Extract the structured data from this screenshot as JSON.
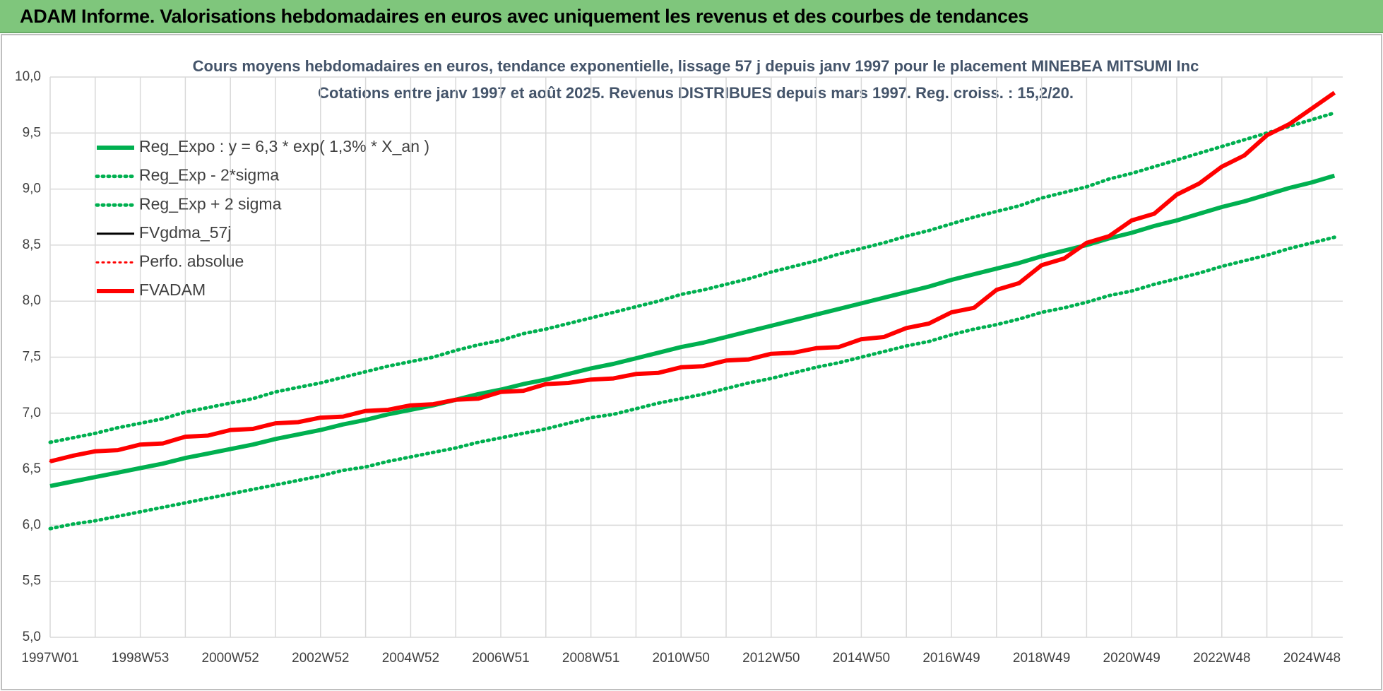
{
  "page_title": "ADAM Informe. Valorisations hebdomadaires en euros avec uniquement les revenus et des courbes de tendances",
  "chart_data": {
    "type": "line",
    "title": "Cours moyens  hebdomadaires en euros, tendance exponentielle, lissage 57 j depuis janv 1997 pour le placement MINEBEA MITSUMI Inc",
    "subtitle": "Cotations entre janv 1997 et août 2025.  Revenus DISTRIBUES depuis mars 1997. Reg. croiss. : 15,2/20.",
    "categories": [
      "1997W01",
      null,
      null,
      null,
      "1998W53",
      null,
      null,
      null,
      "2000W52",
      null,
      null,
      null,
      "2002W52",
      null,
      null,
      null,
      "2004W52",
      null,
      null,
      null,
      "2006W51",
      null,
      null,
      null,
      "2008W51",
      null,
      null,
      null,
      "2010W50",
      null,
      null,
      null,
      "2012W50",
      null,
      null,
      null,
      "2014W50",
      null,
      null,
      null,
      "2016W49",
      null,
      null,
      null,
      "2018W49",
      null,
      null,
      null,
      "2020W49",
      null,
      null,
      null,
      "2022W48",
      null,
      null,
      null,
      "2024W48",
      null
    ],
    "ylim": [
      5,
      10
    ],
    "yticks": [
      {
        "value": 5,
        "label": "5,0"
      },
      {
        "value": 5.5,
        "label": "5,5"
      },
      {
        "value": 6,
        "label": "6,0"
      },
      {
        "value": 6.5,
        "label": "6,5"
      },
      {
        "value": 7,
        "label": "7,0"
      },
      {
        "value": 7.5,
        "label": "7,5"
      },
      {
        "value": 8,
        "label": "8,0"
      },
      {
        "value": 8.5,
        "label": "8,5"
      },
      {
        "value": 9,
        "label": "9,0"
      },
      {
        "value": 9.5,
        "label": "9,5"
      },
      {
        "value": 10,
        "label": "10,0"
      }
    ],
    "grid": true,
    "legend": "top-left",
    "series": [
      {
        "name": "Reg_Expo : y = 6,3 * exp( 1,3% *  X_an )",
        "color": "#00b050",
        "style": "solid",
        "values": [
          6.35,
          6.39,
          6.43,
          6.47,
          6.51,
          6.55,
          6.6,
          6.64,
          6.68,
          6.72,
          6.77,
          6.81,
          6.85,
          6.9,
          6.94,
          6.99,
          7.03,
          7.07,
          7.12,
          7.17,
          7.21,
          7.26,
          7.3,
          7.35,
          7.4,
          7.44,
          7.49,
          7.54,
          7.59,
          7.63,
          7.68,
          7.73,
          7.78,
          7.83,
          7.88,
          7.93,
          7.98,
          8.03,
          8.08,
          8.13,
          8.19,
          8.24,
          8.29,
          8.34,
          8.4,
          8.45,
          8.5,
          8.56,
          8.61,
          8.67,
          8.72,
          8.78,
          8.84,
          8.89,
          8.95,
          9.01,
          9.06,
          9.12
        ]
      },
      {
        "name": "Reg_Exp - 2*sigma",
        "color": "#00b050",
        "style": "dotted",
        "values": [
          5.97,
          6.01,
          6.04,
          6.08,
          6.12,
          6.16,
          6.2,
          6.24,
          6.28,
          6.32,
          6.36,
          6.4,
          6.44,
          6.49,
          6.52,
          6.57,
          6.61,
          6.65,
          6.69,
          6.74,
          6.78,
          6.82,
          6.86,
          6.91,
          6.96,
          6.99,
          7.04,
          7.09,
          7.13,
          7.17,
          7.22,
          7.27,
          7.31,
          7.36,
          7.41,
          7.45,
          7.5,
          7.55,
          7.6,
          7.64,
          7.7,
          7.75,
          7.79,
          7.84,
          7.9,
          7.94,
          7.99,
          8.05,
          8.09,
          8.15,
          8.2,
          8.25,
          8.31,
          8.36,
          8.41,
          8.47,
          8.52,
          8.57
        ]
      },
      {
        "name": "Reg_Exp + 2 sigma",
        "color": "#00b050",
        "style": "dotted",
        "values": [
          6.74,
          6.78,
          6.82,
          6.87,
          6.91,
          6.95,
          7.01,
          7.05,
          7.09,
          7.13,
          7.19,
          7.23,
          7.27,
          7.32,
          7.37,
          7.42,
          7.46,
          7.5,
          7.56,
          7.61,
          7.65,
          7.71,
          7.75,
          7.8,
          7.85,
          7.9,
          7.95,
          8.0,
          8.06,
          8.1,
          8.15,
          8.2,
          8.26,
          8.31,
          8.36,
          8.42,
          8.47,
          8.52,
          8.58,
          8.63,
          8.69,
          8.75,
          8.8,
          8.85,
          8.92,
          8.97,
          9.02,
          9.09,
          9.14,
          9.2,
          9.26,
          9.32,
          9.38,
          9.44,
          9.5,
          9.56,
          9.62,
          9.68
        ]
      },
      {
        "name": "FVgdma_57j",
        "color": "#000000",
        "style": "solid",
        "values": [
          6.57,
          6.62,
          6.66,
          6.67,
          6.72,
          6.73,
          6.79,
          6.8,
          6.85,
          6.86,
          6.91,
          6.92,
          6.96,
          6.97,
          7.02,
          7.03,
          7.07,
          7.08,
          7.12,
          7.13,
          7.19,
          7.2,
          7.26,
          7.27,
          7.3,
          7.31,
          7.35,
          7.36,
          7.41,
          7.42,
          7.47,
          7.48,
          7.53,
          7.54,
          7.58,
          7.59,
          7.66,
          7.68,
          7.76,
          7.8,
          7.9,
          7.94,
          8.1,
          8.16,
          8.32,
          8.38,
          8.52,
          8.58,
          8.72,
          8.78,
          8.95,
          9.05,
          9.2,
          9.3,
          9.48,
          9.58,
          9.72,
          9.86
        ]
      },
      {
        "name": "Perfo. absolue",
        "color": "#ff0000",
        "style": "dotted",
        "values": [
          6.57,
          6.62,
          6.66,
          6.67,
          6.72,
          6.73,
          6.79,
          6.8,
          6.85,
          6.86,
          6.91,
          6.92,
          6.96,
          6.97,
          7.02,
          7.03,
          7.07,
          7.08,
          7.12,
          7.13,
          7.19,
          7.2,
          7.26,
          7.27,
          7.3,
          7.31,
          7.35,
          7.36,
          7.41,
          7.42,
          7.47,
          7.48,
          7.53,
          7.54,
          7.58,
          7.59,
          7.66,
          7.68,
          7.76,
          7.8,
          7.9,
          7.94,
          8.1,
          8.16,
          8.32,
          8.38,
          8.52,
          8.58,
          8.72,
          8.78,
          8.95,
          9.05,
          9.2,
          9.3,
          9.48,
          9.58,
          9.72,
          9.86
        ]
      },
      {
        "name": "FVADAM",
        "color": "#ff0000",
        "style": "solid",
        "values": [
          6.57,
          6.62,
          6.66,
          6.67,
          6.72,
          6.73,
          6.79,
          6.8,
          6.85,
          6.86,
          6.91,
          6.92,
          6.96,
          6.97,
          7.02,
          7.03,
          7.07,
          7.08,
          7.12,
          7.13,
          7.19,
          7.2,
          7.26,
          7.27,
          7.3,
          7.31,
          7.35,
          7.36,
          7.41,
          7.42,
          7.47,
          7.48,
          7.53,
          7.54,
          7.58,
          7.59,
          7.66,
          7.68,
          7.76,
          7.8,
          7.9,
          7.94,
          8.1,
          8.16,
          8.32,
          8.38,
          8.52,
          8.58,
          8.72,
          8.78,
          8.95,
          9.05,
          9.2,
          9.3,
          9.48,
          9.58,
          9.72,
          9.86
        ]
      }
    ]
  }
}
